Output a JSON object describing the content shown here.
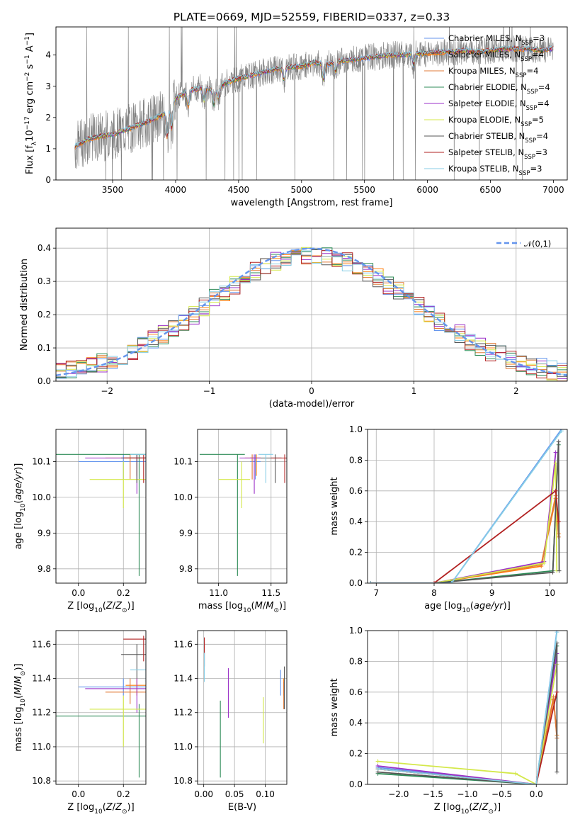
{
  "title": "PLATE=0669, MJD=52559, FIBERID=0337, z=0.33",
  "colors": [
    "#6495ed",
    "#ff7f0e",
    "#e07b39",
    "#2e8b57",
    "#9b30c8",
    "#d4e84a",
    "#555555",
    "#b22222",
    "#87cee6"
  ],
  "models": [
    {
      "name": "Chabrier MILES, N",
      "sub": "SSP",
      "suffix": "=3",
      "color": "#6495ed"
    },
    {
      "name": "Salpeter MILES, N",
      "sub": "SSP",
      "suffix": "=4",
      "color": "#ff7f0e"
    },
    {
      "name": "Kroupa MILES, N",
      "sub": "SSP",
      "suffix": "=4",
      "color": "#e07b39"
    },
    {
      "name": "Chabrier ELODIE, N",
      "sub": "SSP",
      "suffix": "=4",
      "color": "#2e8b57"
    },
    {
      "name": "Salpeter ELODIE, N",
      "sub": "SSP",
      "suffix": "=4",
      "color": "#9b30c8"
    },
    {
      "name": "Kroupa ELODIE, N",
      "sub": "SSP",
      "suffix": "=5",
      "color": "#d4e84a"
    },
    {
      "name": "Chabrier STELIB, N",
      "sub": "SSP",
      "suffix": "=4",
      "color": "#555555"
    },
    {
      "name": "Salpeter STELIB, N",
      "sub": "SSP",
      "suffix": "=3",
      "color": "#b22222"
    },
    {
      "name": "Kroupa STELIB, N",
      "sub": "SSP",
      "suffix": "=3",
      "color": "#87cee6"
    }
  ],
  "chart_data": [
    {
      "id": "spectrum",
      "type": "line",
      "title": "PLATE=0669, MJD=52559, FIBERID=0337, z=0.33",
      "xlabel": "wavelength [Angstrom, rest frame]",
      "ylabel": "Flux [f_λ 10^-17 erg cm^-2 s^-1 A^-1]",
      "xlim": [
        3050,
        7110
      ],
      "ylim": [
        0,
        4.9
      ],
      "xticks": [
        3500,
        4000,
        4500,
        5000,
        5500,
        6000,
        6500,
        7000
      ],
      "yticks": [
        0,
        1,
        2,
        3,
        4
      ],
      "grid": false,
      "legend": "right",
      "data_color": "#808080",
      "continuum": [
        [
          3200,
          1.05
        ],
        [
          3300,
          1.3
        ],
        [
          3400,
          1.4
        ],
        [
          3500,
          1.45
        ],
        [
          3600,
          1.6
        ],
        [
          3700,
          1.75
        ],
        [
          3800,
          1.9
        ],
        [
          3900,
          2.1
        ],
        [
          4000,
          2.6
        ],
        [
          4100,
          2.85
        ],
        [
          4200,
          2.95
        ],
        [
          4300,
          2.9
        ],
        [
          4400,
          3.1
        ],
        [
          4500,
          3.25
        ],
        [
          4600,
          3.35
        ],
        [
          4700,
          3.45
        ],
        [
          4800,
          3.55
        ],
        [
          4900,
          3.6
        ],
        [
          5000,
          3.65
        ],
        [
          5100,
          3.75
        ],
        [
          5200,
          3.7
        ],
        [
          5300,
          3.8
        ],
        [
          5400,
          3.85
        ],
        [
          5500,
          3.9
        ],
        [
          5600,
          3.95
        ],
        [
          5700,
          4.0
        ],
        [
          5800,
          4.0
        ],
        [
          5900,
          4.05
        ],
        [
          6000,
          4.05
        ],
        [
          6100,
          4.1
        ],
        [
          6200,
          4.1
        ],
        [
          6300,
          4.15
        ],
        [
          6400,
          4.1
        ],
        [
          6500,
          4.15
        ],
        [
          6600,
          4.2
        ],
        [
          6700,
          4.2
        ],
        [
          6800,
          4.2
        ],
        [
          6900,
          4.15
        ],
        [
          7000,
          4.2
        ]
      ]
    },
    {
      "id": "residuals",
      "type": "step",
      "xlabel": "(data-model)/error",
      "ylabel": "Normed distribution",
      "xlim": [
        -2.5,
        2.5
      ],
      "ylim": [
        0,
        0.46
      ],
      "xticks": [
        -2,
        -1,
        0,
        1,
        2
      ],
      "yticks": [
        0.0,
        0.1,
        0.2,
        0.3,
        0.4
      ],
      "grid": true,
      "legend": "top-right",
      "gauss_label": "𝒩(0,1)",
      "gauss_color": "#6495ed",
      "bin_width": 0.1
    },
    {
      "id": "age_vs_Z",
      "type": "errorbar",
      "xlabel": "Z [log10(Z/Z⊙)]",
      "ylabel": "age [log10(age/yr)]",
      "xlim": [
        -0.1,
        0.3
      ],
      "ylim": [
        9.76,
        10.19
      ],
      "xticks": [
        0.0,
        0.2
      ],
      "yticks": [
        9.8,
        9.9,
        10.0,
        10.1
      ],
      "grid": true
    },
    {
      "id": "age_vs_mass",
      "type": "errorbar",
      "xlabel": "mass [log10(M/M⊙)]",
      "ylabel": "",
      "xlim": [
        10.8,
        11.65
      ],
      "ylim": [
        9.76,
        10.19
      ],
      "xticks": [
        11.0,
        11.5
      ],
      "yticks": [
        9.8,
        9.9,
        10.0,
        10.1
      ],
      "grid": true
    },
    {
      "id": "mw_vs_age",
      "type": "line",
      "xlabel": "age [log10(age/yr)]",
      "ylabel": "mass weight",
      "xlim": [
        6.85,
        10.3
      ],
      "ylim": [
        0,
        1
      ],
      "xticks": [
        7,
        8,
        9,
        10
      ],
      "yticks": [
        0.0,
        0.2,
        0.4,
        0.6,
        0.8,
        1.0
      ],
      "grid": true
    },
    {
      "id": "mass_vs_Z",
      "type": "errorbar",
      "xlabel": "Z [log10(Z/Z⊙)]",
      "ylabel": "mass [log10(M/M⊙)]",
      "xlim": [
        -0.1,
        0.3
      ],
      "ylim": [
        10.78,
        11.68
      ],
      "xticks": [
        0.0,
        0.2
      ],
      "yticks": [
        10.8,
        11.0,
        11.2,
        11.4,
        11.6
      ],
      "grid": true
    },
    {
      "id": "mass_vs_ebv",
      "type": "errorbar",
      "xlabel": "E(B-V)",
      "ylabel": "",
      "xlim": [
        -0.01,
        0.135
      ],
      "ylim": [
        10.78,
        11.68
      ],
      "xticks": [
        0.0,
        0.05,
        0.1
      ],
      "yticks": [
        10.8,
        11.0,
        11.2,
        11.4,
        11.6
      ],
      "grid": true
    },
    {
      "id": "mw_vs_Z",
      "type": "line",
      "xlabel": "Z [log10(Z/Z⊙)]",
      "ylabel": "mass weight",
      "xlim": [
        -2.45,
        0.45
      ],
      "ylim": [
        0,
        1
      ],
      "xticks": [
        -2.0,
        -1.5,
        -1.0,
        -0.5,
        0.0
      ],
      "yticks": [
        0.0,
        0.2,
        0.4,
        0.6,
        0.8,
        1.0
      ],
      "grid": true
    }
  ],
  "fits": [
    {
      "Z": 0.2,
      "Zlo": 0.0,
      "Zhi": 0.3,
      "age": 10.1,
      "agelo": 10.05,
      "agehi": 10.12,
      "mass": 11.35,
      "masslo": 11.3,
      "masshi": 11.4,
      "ebv": 0.125,
      "ebvlo": 11.3,
      "ebvhi": 11.45
    },
    {
      "Z": 0.26,
      "Zlo": 0.21,
      "Zhi": 0.3,
      "age": 10.11,
      "agelo": 10.06,
      "agehi": 10.12,
      "mass": 11.36,
      "masslo": 11.3,
      "masshi": 11.4,
      "ebv": 0.13,
      "ebvlo": 11.3,
      "ebvhi": 11.4
    },
    {
      "Z": 0.23,
      "Zlo": 0.12,
      "Zhi": 0.3,
      "age": 10.11,
      "agelo": 10.05,
      "agehi": 10.12,
      "mass": 11.32,
      "masslo": 11.25,
      "masshi": 11.4,
      "ebv": 0.13,
      "ebvlo": 11.22,
      "ebvhi": 11.38
    },
    {
      "Z": 0.27,
      "Zlo": -0.1,
      "Zhi": 0.3,
      "age": 10.12,
      "agelo": 9.78,
      "agehi": 10.12,
      "mass": 11.18,
      "masslo": 10.82,
      "masshi": 11.25,
      "ebv": 0.027,
      "ebvlo": 10.82,
      "ebvhi": 11.27
    },
    {
      "Z": 0.26,
      "Zlo": 0.03,
      "Zhi": 0.3,
      "age": 10.11,
      "agelo": 10.01,
      "agehi": 10.12,
      "mass": 11.34,
      "masslo": 11.2,
      "masshi": 11.4,
      "ebv": 0.04,
      "ebvlo": 11.17,
      "ebvhi": 11.46
    },
    {
      "Z": 0.2,
      "Zlo": 0.05,
      "Zhi": 0.3,
      "age": 10.05,
      "agelo": 9.97,
      "agehi": 10.1,
      "mass": 11.22,
      "masslo": 11.0,
      "masshi": 11.3,
      "ebv": 0.097,
      "ebvlo": 11.02,
      "ebvhi": 11.29
    },
    {
      "Z": 0.26,
      "Zlo": 0.19,
      "Zhi": 0.3,
      "age": 10.11,
      "agelo": 10.04,
      "agehi": 10.12,
      "mass": 11.54,
      "masslo": 11.4,
      "masshi": 11.6,
      "ebv": 0.131,
      "ebvlo": 11.22,
      "ebvhi": 11.47
    },
    {
      "Z": 0.29,
      "Zlo": 0.2,
      "Zhi": 0.3,
      "age": 10.11,
      "agelo": 10.04,
      "agehi": 10.12,
      "mass": 11.63,
      "masslo": 11.5,
      "masshi": 11.65,
      "ebv": 0.001,
      "ebvlo": 11.47,
      "ebvhi": 11.64
    },
    {
      "Z": 0.3,
      "Zlo": 0.23,
      "Zhi": 0.3,
      "age": 10.12,
      "agelo": 10.04,
      "agehi": 10.12,
      "mass": 11.45,
      "masslo": 11.38,
      "masshi": 11.52,
      "ebv": 0.001,
      "ebvlo": 11.38,
      "ebvhi": 11.55
    }
  ]
}
